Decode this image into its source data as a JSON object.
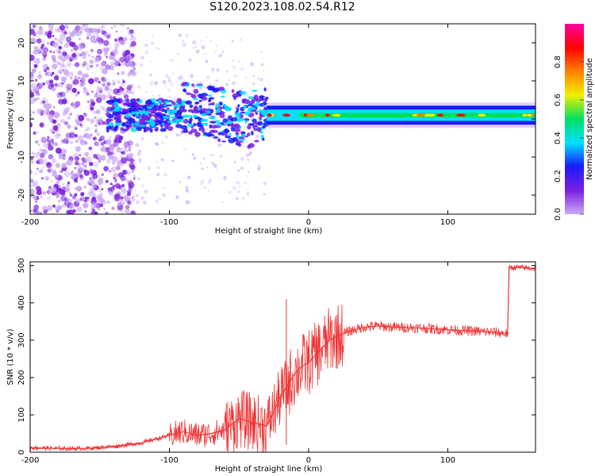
{
  "title": "S120.2023.108.02.54.R12",
  "chart_data": [
    {
      "type": "heatmap",
      "xlabel": "Height of straight line (km)",
      "ylabel": "Frequency (Hz)",
      "xlim": [
        -200,
        163
      ],
      "ylim": [
        -25,
        25
      ],
      "xticks": [
        -200,
        -100,
        0,
        100
      ],
      "yticks": [
        -20,
        -10,
        0,
        10,
        20
      ],
      "colorbar": {
        "label": "Normalized spectral amplitude",
        "range": [
          0,
          1
        ],
        "ticks": [
          "0.0",
          "0.2",
          "0.4",
          "0.6",
          "0.8"
        ],
        "colors": [
          "#ffffff",
          "#c9a9f5",
          "#7a1fe0",
          "#1a1aff",
          "#00e0ff",
          "#00e060",
          "#f0f000",
          "#ff8000",
          "#ff0000",
          "#ff00a0"
        ]
      },
      "band": {
        "center_hz": 1.0,
        "half_width_hz": 2.5,
        "continuous_from_km": -30,
        "scattered_from_km": -145
      }
    },
    {
      "type": "line",
      "xlabel": "Height of straight line (km)",
      "ylabel": "SNR (10 * v/v)",
      "xlim": [
        -200,
        163
      ],
      "ylim": [
        0,
        510
      ],
      "xticks": [
        -200,
        -100,
        0,
        100
      ],
      "yticks": [
        0,
        100,
        200,
        300,
        400,
        500
      ],
      "color": "#ee3333",
      "x": [
        -200,
        -180,
        -160,
        -140,
        -120,
        -110,
        -100,
        -90,
        -80,
        -70,
        -60,
        -50,
        -40,
        -30,
        -20,
        -15,
        -10,
        -5,
        0,
        5,
        10,
        15,
        20,
        30,
        40,
        50,
        60,
        70,
        80,
        90,
        100,
        110,
        120,
        130,
        143,
        144,
        150,
        163
      ],
      "y": [
        12,
        10,
        10,
        15,
        25,
        35,
        45,
        55,
        45,
        50,
        60,
        90,
        80,
        70,
        150,
        180,
        210,
        230,
        240,
        260,
        280,
        300,
        310,
        325,
        335,
        338,
        335,
        334,
        333,
        330,
        328,
        326,
        324,
        322,
        318,
        495,
        495,
        492
      ]
    }
  ]
}
